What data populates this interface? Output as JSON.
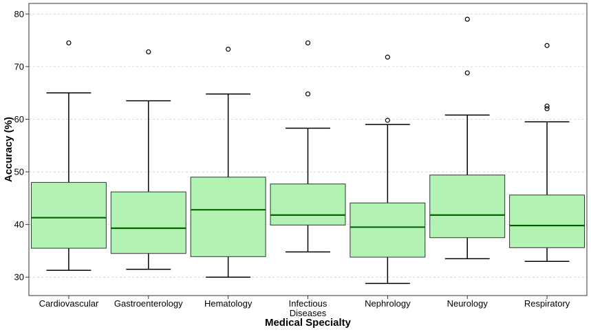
{
  "chart_data": {
    "type": "box",
    "title": "",
    "xlabel": "Medical Specialty",
    "ylabel": "Accuracy (%)",
    "ylim": [
      26.5,
      82
    ],
    "yticks": [
      30,
      40,
      50,
      60,
      70,
      80
    ],
    "grid": "horizontal dashed",
    "colors": {
      "box_fill": "#b2f2b2",
      "box_edge": "#333333",
      "median": "#006400",
      "whisker": "#000000",
      "grid": "#cccccc"
    },
    "categories": [
      "Cardiovascular",
      "Gastroenterology",
      "Hematology",
      "Infectious Diseases",
      "Nephrology",
      "Neurology",
      "Respiratory"
    ],
    "category_lines": [
      [
        "Cardiovascular"
      ],
      [
        "Gastroenterology"
      ],
      [
        "Hematology"
      ],
      [
        "Infectious",
        "Diseases"
      ],
      [
        "Nephrology"
      ],
      [
        "Neurology"
      ],
      [
        "Respiratory"
      ]
    ],
    "boxes": [
      {
        "whisker_low": 31.3,
        "q1": 35.5,
        "median": 41.3,
        "q3": 48.0,
        "whisker_high": 65.0,
        "outliers": [
          74.5
        ]
      },
      {
        "whisker_low": 31.5,
        "q1": 34.5,
        "median": 39.3,
        "q3": 46.2,
        "whisker_high": 63.5,
        "outliers": [
          72.8
        ]
      },
      {
        "whisker_low": 30.0,
        "q1": 33.9,
        "median": 42.8,
        "q3": 49.0,
        "whisker_high": 64.8,
        "outliers": [
          73.3
        ]
      },
      {
        "whisker_low": 34.8,
        "q1": 39.9,
        "median": 41.8,
        "q3": 47.7,
        "whisker_high": 58.3,
        "outliers": [
          64.8,
          74.5
        ]
      },
      {
        "whisker_low": 28.8,
        "q1": 33.8,
        "median": 39.5,
        "q3": 44.1,
        "whisker_high": 59.0,
        "outliers": [
          59.8,
          71.8
        ]
      },
      {
        "whisker_low": 33.5,
        "q1": 37.5,
        "median": 41.8,
        "q3": 49.4,
        "whisker_high": 60.8,
        "outliers": [
          68.8,
          79.0
        ]
      },
      {
        "whisker_low": 33.0,
        "q1": 35.6,
        "median": 39.8,
        "q3": 45.6,
        "whisker_high": 59.5,
        "outliers": [
          62.0,
          62.5,
          74.0
        ]
      }
    ]
  }
}
